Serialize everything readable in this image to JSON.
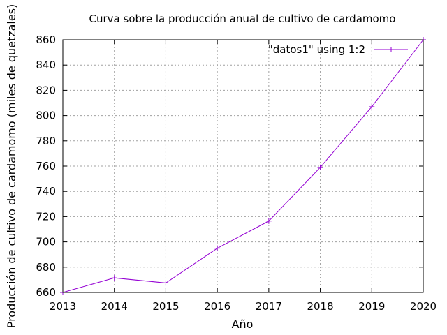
{
  "chart_data": {
    "type": "line",
    "title": "Curva sobre la producción anual de cultivo de cardamomo",
    "xlabel": "Año",
    "ylabel": "Producción de cultivo de cardamomo (miles de quetzales)",
    "xlim": [
      2013,
      2020
    ],
    "ylim": [
      660,
      860
    ],
    "x_ticks": [
      2013,
      2014,
      2015,
      2016,
      2017,
      2018,
      2019,
      2020
    ],
    "y_ticks": [
      660,
      680,
      700,
      720,
      740,
      760,
      780,
      800,
      820,
      840,
      860
    ],
    "grid": true,
    "legend_position": "top-right",
    "series": [
      {
        "name": "\"datos1\" using 1:2",
        "color": "#9400d3",
        "marker": "plus",
        "x": [
          2013,
          2014,
          2015,
          2016,
          2017,
          2018,
          2019,
          2020
        ],
        "y": [
          660,
          671.5,
          667.5,
          695,
          716.5,
          759,
          807,
          860
        ]
      }
    ]
  }
}
